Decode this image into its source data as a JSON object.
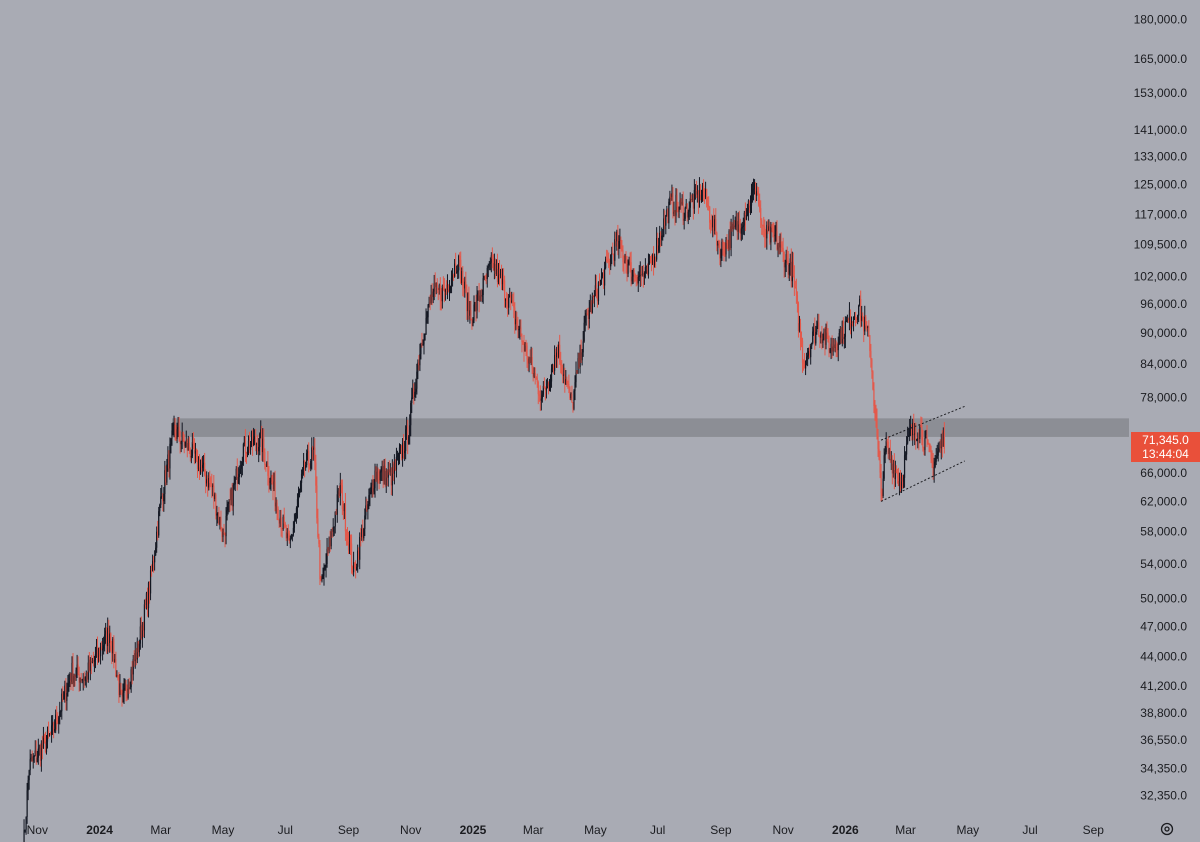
{
  "chart_data": {
    "type": "candlestick",
    "y_scale": "log",
    "ylim": [
      30500,
      188000
    ],
    "x_range": [
      "2023-10-17",
      "2026-10-05"
    ],
    "y_ticks": [
      "180,000.0",
      "165,000.0",
      "153,000.0",
      "141,000.0",
      "133,000.0",
      "125,000.0",
      "117,000.0",
      "109,500.0",
      "102,000.0",
      "96,000.0",
      "90,000.0",
      "84,000.0",
      "78,000.0",
      "66,000.0",
      "62,000.0",
      "58,000.0",
      "54,000.0",
      "50,000.0",
      "47,000.0",
      "44,000.0",
      "41,200.0",
      "38,800.0",
      "36,550.0",
      "34,350.0",
      "32,350.0"
    ],
    "x_ticks": [
      {
        "label": "Nov",
        "date": "2023-11-01",
        "year": false
      },
      {
        "label": "2024",
        "date": "2024-01-01",
        "year": true
      },
      {
        "label": "Mar",
        "date": "2024-03-01",
        "year": false
      },
      {
        "label": "May",
        "date": "2024-05-01",
        "year": false
      },
      {
        "label": "Jul",
        "date": "2024-07-01",
        "year": false
      },
      {
        "label": "Sep",
        "date": "2024-09-01",
        "year": false
      },
      {
        "label": "Nov",
        "date": "2024-11-01",
        "year": false
      },
      {
        "label": "2025",
        "date": "2025-01-01",
        "year": true
      },
      {
        "label": "Mar",
        "date": "2025-03-01",
        "year": false
      },
      {
        "label": "May",
        "date": "2025-05-01",
        "year": false
      },
      {
        "label": "Jul",
        "date": "2025-07-01",
        "year": false
      },
      {
        "label": "Sep",
        "date": "2025-09-01",
        "year": false
      },
      {
        "label": "Nov",
        "date": "2025-11-01",
        "year": false
      },
      {
        "label": "2026",
        "date": "2026-01-01",
        "year": true
      },
      {
        "label": "Mar",
        "date": "2026-03-01",
        "year": false
      },
      {
        "label": "May",
        "date": "2026-05-01",
        "year": false
      },
      {
        "label": "Jul",
        "date": "2026-07-01",
        "year": false
      },
      {
        "label": "Sep",
        "date": "2026-09-01",
        "year": false
      }
    ],
    "price_path": [
      [
        "2023-10-18",
        28400
      ],
      [
        "2023-10-24",
        34500
      ],
      [
        "2023-11-15",
        37000
      ],
      [
        "2023-12-05",
        42500
      ],
      [
        "2023-12-18",
        42000
      ],
      [
        "2024-01-11",
        46500
      ],
      [
        "2024-01-23",
        39500
      ],
      [
        "2024-02-08",
        45000
      ],
      [
        "2024-02-20",
        52000
      ],
      [
        "2024-03-01",
        62000
      ],
      [
        "2024-03-14",
        72500
      ],
      [
        "2024-04-01",
        69000
      ],
      [
        "2024-04-20",
        64000
      ],
      [
        "2024-05-01",
        57500
      ],
      [
        "2024-05-21",
        70000
      ],
      [
        "2024-06-07",
        71000
      ],
      [
        "2024-06-24",
        61000
      ],
      [
        "2024-07-05",
        56000
      ],
      [
        "2024-07-20",
        67000
      ],
      [
        "2024-07-29",
        69000
      ],
      [
        "2024-08-05",
        51000
      ],
      [
        "2024-08-24",
        64000
      ],
      [
        "2024-09-06",
        53000
      ],
      [
        "2024-09-27",
        66000
      ],
      [
        "2024-10-14",
        65500
      ],
      [
        "2024-10-29",
        72000
      ],
      [
        "2024-11-11",
        88000
      ],
      [
        "2024-11-22",
        98000
      ],
      [
        "2024-12-05",
        99000
      ],
      [
        "2024-12-17",
        106000
      ],
      [
        "2024-12-30",
        93000
      ],
      [
        "2025-01-20",
        105000
      ],
      [
        "2025-02-05",
        97000
      ],
      [
        "2025-02-26",
        84000
      ],
      [
        "2025-03-10",
        78000
      ],
      [
        "2025-03-25",
        87000
      ],
      [
        "2025-04-08",
        76500
      ],
      [
        "2025-04-22",
        93000
      ],
      [
        "2025-05-22",
        110000
      ],
      [
        "2025-06-05",
        103000
      ],
      [
        "2025-06-20",
        102000
      ],
      [
        "2025-07-14",
        120000
      ],
      [
        "2025-07-28",
        118000
      ],
      [
        "2025-08-14",
        123500
      ],
      [
        "2025-09-01",
        108000
      ],
      [
        "2025-09-20",
        115000
      ],
      [
        "2025-10-06",
        124500
      ],
      [
        "2025-10-12",
        112000
      ],
      [
        "2025-10-24",
        111000
      ],
      [
        "2025-11-10",
        103000
      ],
      [
        "2025-11-21",
        84500
      ],
      [
        "2025-12-05",
        91500
      ],
      [
        "2025-12-18",
        87000
      ],
      [
        "2026-01-14",
        95500
      ],
      [
        "2026-01-25",
        88000
      ],
      [
        "2026-02-05",
        63000
      ],
      [
        "2026-02-10",
        70000
      ],
      [
        "2026-02-24",
        64500
      ],
      [
        "2026-03-05",
        72000
      ],
      [
        "2026-03-15",
        73000
      ],
      [
        "2026-03-28",
        67000
      ],
      [
        "2026-04-08",
        71345
      ]
    ],
    "resistance_zone": [
      71500,
      74500
    ],
    "channel": {
      "upper": [
        [
          "2026-02-05",
          71000
        ],
        [
          "2026-04-28",
          76500
        ]
      ],
      "lower": [
        [
          "2026-02-05",
          62000
        ],
        [
          "2026-04-28",
          67800
        ]
      ]
    },
    "last_price": "71,345.0",
    "countdown": "13:44:04",
    "colors": {
      "background": "#a9abb4",
      "up": "#131722",
      "down": "#e4584a",
      "zone": "#8c8e95",
      "badge": "#e9503a"
    }
  },
  "icons": {
    "settings": "gear-icon"
  }
}
